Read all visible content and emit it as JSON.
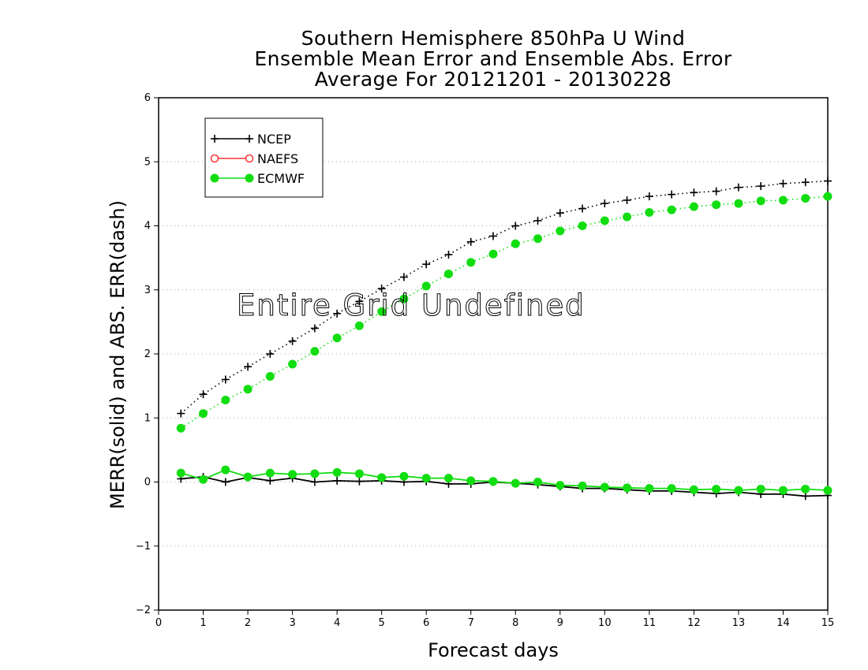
{
  "chart_data": {
    "type": "line",
    "title_lines": [
      "Southern Hemisphere 850hPa U Wind",
      "Ensemble Mean Error and Ensemble Abs. Error",
      "Average For 20121201 - 20130228"
    ],
    "xlabel": "Forecast days",
    "ylabel": "MERR(solid) and ABS. ERR(dash)",
    "xlim": [
      0,
      15
    ],
    "ylim": [
      -2,
      6
    ],
    "x_ticks": [
      "0",
      "1",
      "2",
      "3",
      "4",
      "5",
      "6",
      "7",
      "8",
      "9",
      "10",
      "11",
      "12",
      "13",
      "14",
      "15"
    ],
    "y_ticks": [
      "6",
      "5",
      "4",
      "3",
      "2",
      "1",
      "0",
      "−1",
      "−2"
    ],
    "grid": "horizontal dotted",
    "annotation": "Entire Grid Undefined",
    "legend": {
      "placement": "top-left",
      "entries": [
        {
          "name": "NCEP",
          "color": "#000000",
          "marker": "plus"
        },
        {
          "name": "NAEFS",
          "color": "#ff3333",
          "marker": "open-circle"
        },
        {
          "name": "ECMWF",
          "color": "#11dd11",
          "marker": "filled-circle"
        }
      ]
    },
    "x": [
      0.5,
      1,
      1.5,
      2,
      2.5,
      3,
      3.5,
      4,
      4.5,
      5,
      5.5,
      6,
      6.5,
      7,
      7.5,
      8,
      8.5,
      9,
      9.5,
      10,
      10.5,
      11,
      11.5,
      12,
      12.5,
      13,
      13.5,
      14,
      14.5,
      15
    ],
    "series": [
      {
        "name": "NCEP",
        "style": "dash",
        "color": "#000000",
        "marker": "plus",
        "values": [
          1.07,
          1.37,
          1.6,
          1.8,
          2.0,
          2.2,
          2.4,
          2.63,
          2.82,
          3.02,
          3.2,
          3.4,
          3.55,
          3.75,
          3.84,
          4.0,
          4.08,
          4.2,
          4.27,
          4.35,
          4.4,
          4.46,
          4.49,
          4.52,
          4.54,
          4.6,
          4.62,
          4.66,
          4.68,
          4.7
        ]
      },
      {
        "name": "ECMWF",
        "style": "dash",
        "color": "#11dd11",
        "marker": "filled-circle",
        "values": [
          0.84,
          1.07,
          1.28,
          1.45,
          1.65,
          1.84,
          2.04,
          2.25,
          2.44,
          2.66,
          2.86,
          3.06,
          3.25,
          3.43,
          3.56,
          3.72,
          3.8,
          3.92,
          4.0,
          4.08,
          4.14,
          4.21,
          4.25,
          4.3,
          4.33,
          4.35,
          4.39,
          4.4,
          4.43,
          4.46
        ]
      },
      {
        "name": "NCEP",
        "style": "solid",
        "color": "#000000",
        "marker": "plus",
        "values": [
          0.05,
          0.08,
          0.0,
          0.07,
          0.02,
          0.06,
          0.0,
          0.02,
          0.01,
          0.02,
          0.0,
          0.01,
          -0.03,
          -0.03,
          0.0,
          -0.02,
          -0.04,
          -0.07,
          -0.1,
          -0.1,
          -0.12,
          -0.14,
          -0.14,
          -0.16,
          -0.18,
          -0.16,
          -0.19,
          -0.19,
          -0.22,
          -0.21
        ]
      },
      {
        "name": "ECMWF",
        "style": "solid",
        "color": "#11dd11",
        "marker": "filled-circle",
        "values": [
          0.14,
          0.04,
          0.19,
          0.08,
          0.14,
          0.12,
          0.13,
          0.15,
          0.13,
          0.07,
          0.09,
          0.06,
          0.06,
          0.02,
          0.01,
          -0.02,
          0.0,
          -0.05,
          -0.06,
          -0.08,
          -0.09,
          -0.1,
          -0.1,
          -0.12,
          -0.11,
          -0.13,
          -0.11,
          -0.13,
          -0.11,
          -0.13
        ]
      }
    ]
  }
}
